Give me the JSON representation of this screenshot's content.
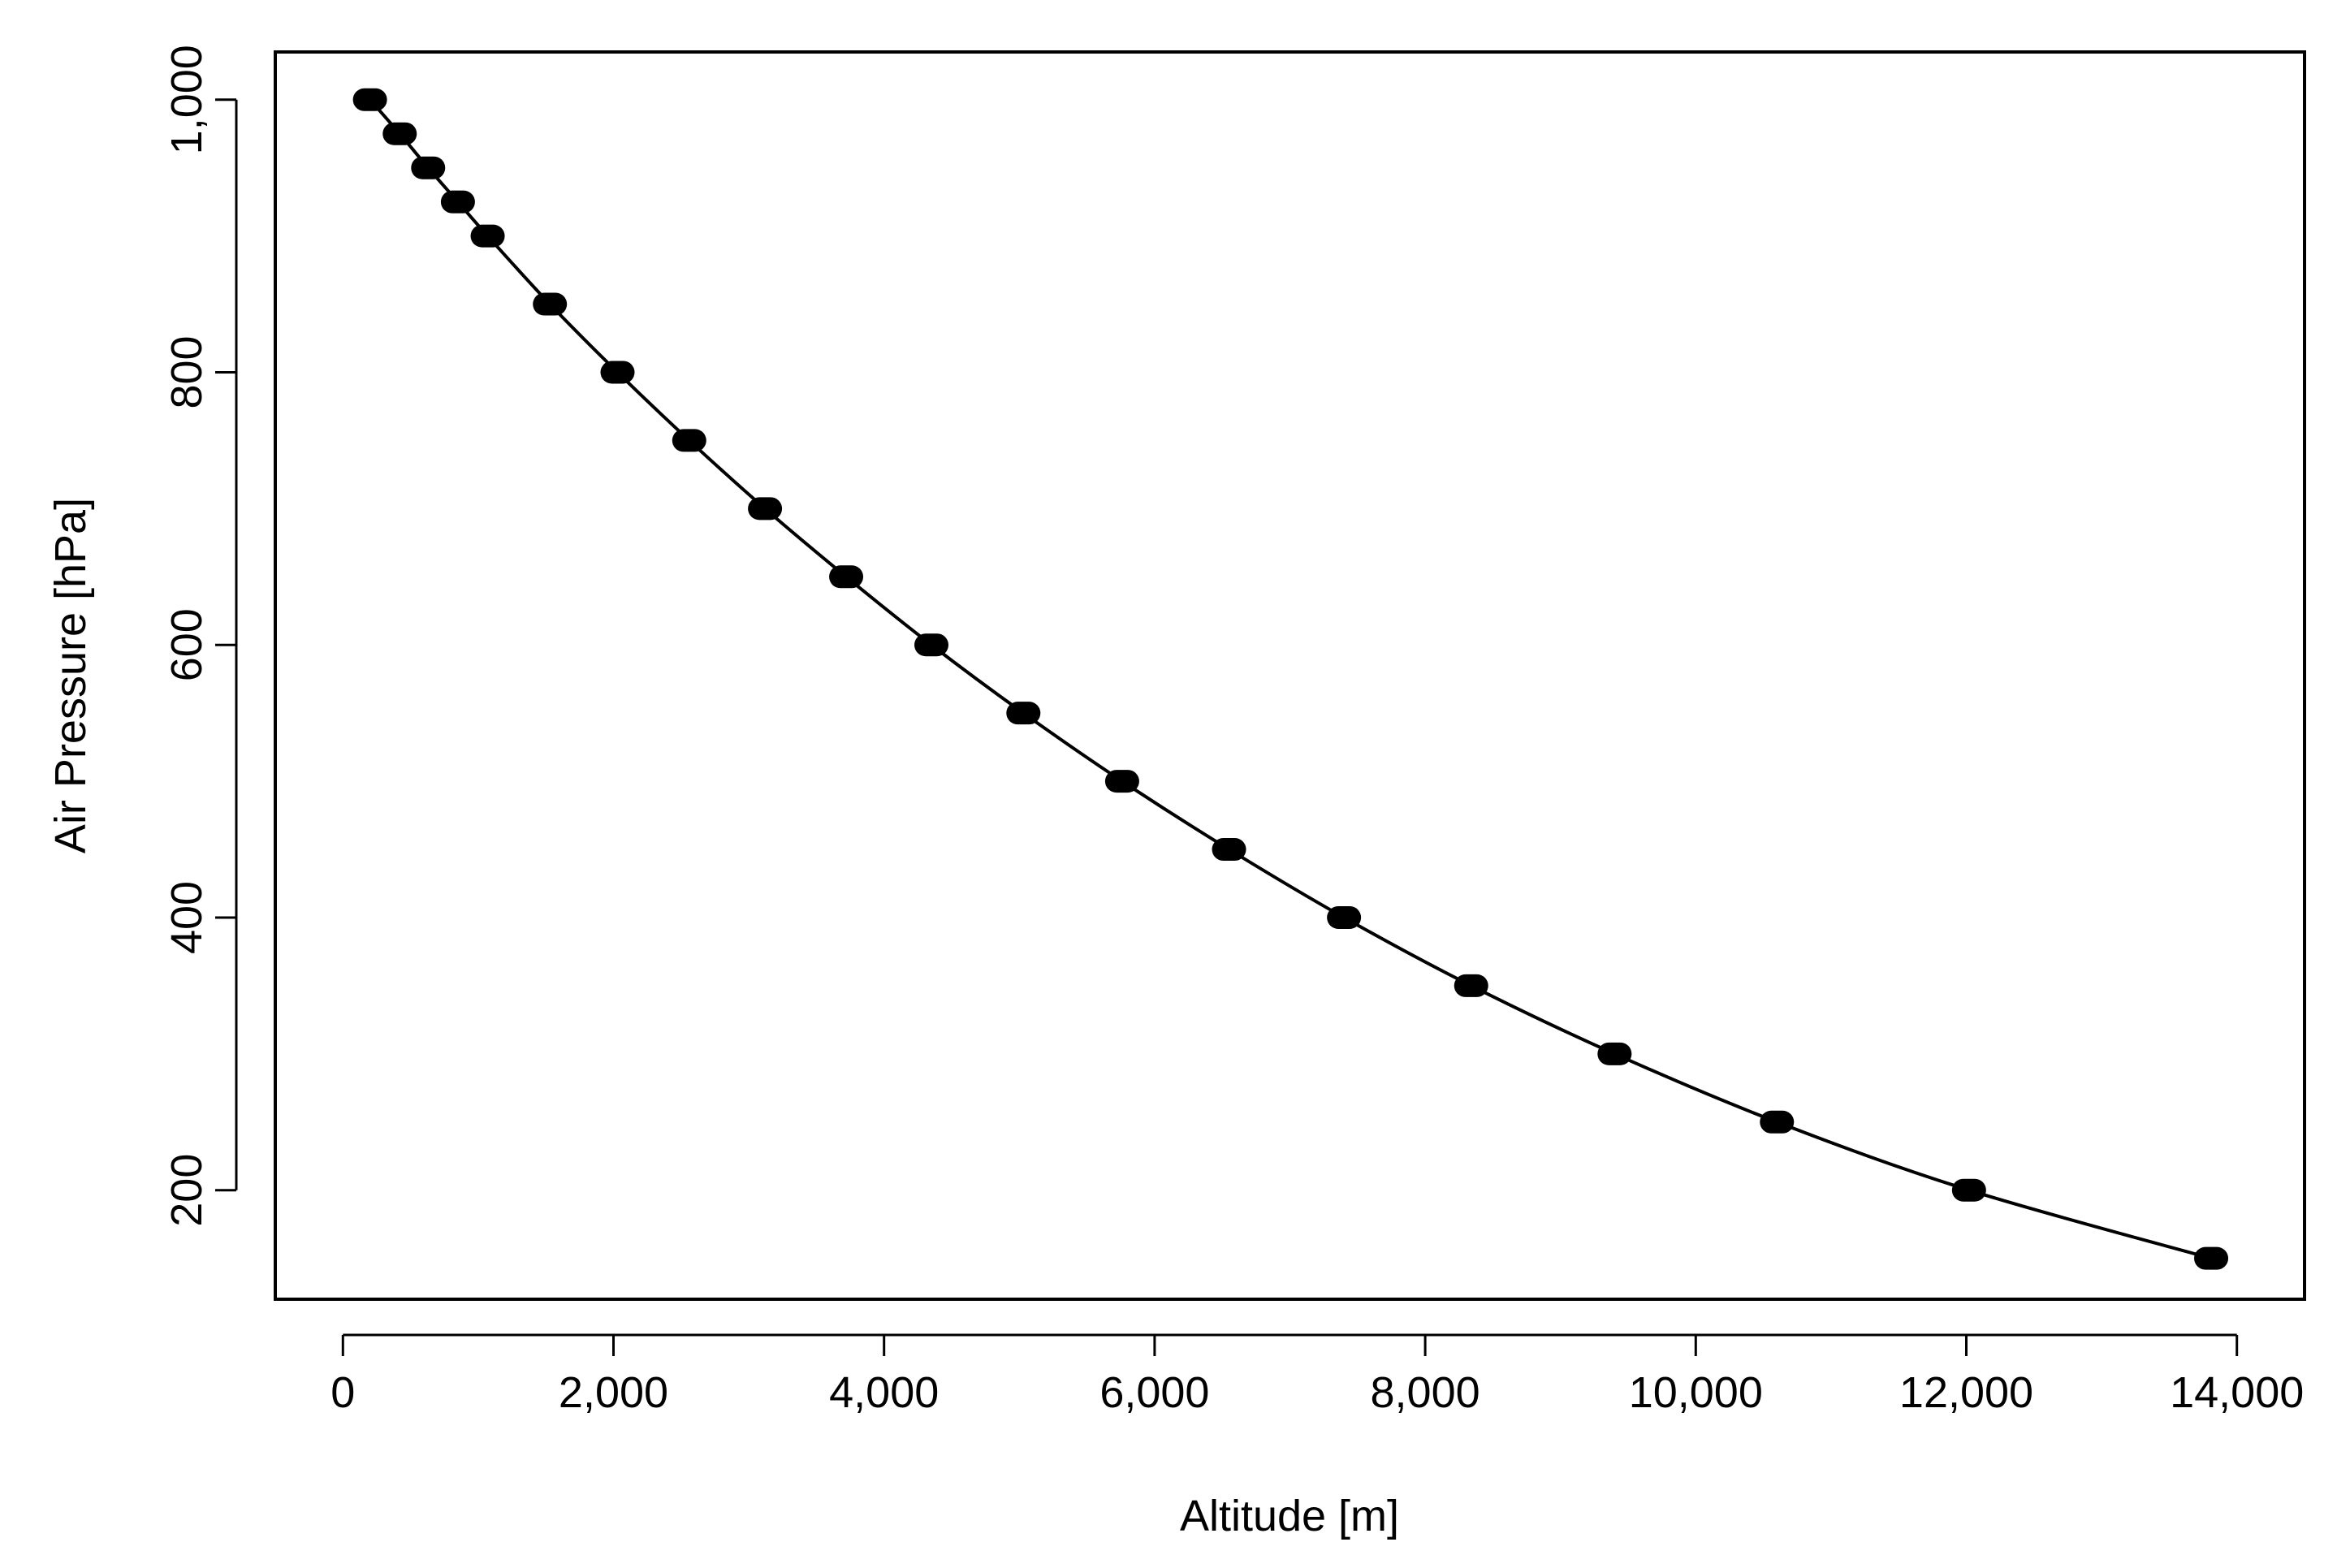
{
  "chart_data": {
    "type": "scatter",
    "title": "",
    "xlabel": "Altitude [m]",
    "ylabel": "Air Pressure [hPa]",
    "xlim": [
      -500,
      14500
    ],
    "ylim": [
      120,
      1035
    ],
    "x_ticks": [
      0,
      2000,
      4000,
      6000,
      8000,
      10000,
      12000,
      14000
    ],
    "x_tick_labels": [
      "0",
      "2,000",
      "4,000",
      "6,000",
      "8,000",
      "10,000",
      "12,000",
      "14,000"
    ],
    "y_ticks": [
      200,
      400,
      600,
      800,
      1000
    ],
    "y_tick_labels": [
      "200",
      "400",
      "600",
      "800",
      "1,000"
    ],
    "grid": false,
    "legend": "none",
    "series": [
      {
        "marker": "filled-circle",
        "color": "#000000",
        "points": [
          {
            "x": 200,
            "y": 1000
          },
          {
            "x": 420,
            "y": 975
          },
          {
            "x": 630,
            "y": 950
          },
          {
            "x": 850,
            "y": 925
          },
          {
            "x": 1070,
            "y": 900
          },
          {
            "x": 1530,
            "y": 850
          },
          {
            "x": 2030,
            "y": 800
          },
          {
            "x": 2560,
            "y": 750
          },
          {
            "x": 3120,
            "y": 700
          },
          {
            "x": 3720,
            "y": 650
          },
          {
            "x": 4350,
            "y": 600
          },
          {
            "x": 5030,
            "y": 550
          },
          {
            "x": 5760,
            "y": 500
          },
          {
            "x": 6550,
            "y": 450
          },
          {
            "x": 7400,
            "y": 400
          },
          {
            "x": 8340,
            "y": 350
          },
          {
            "x": 9400,
            "y": 300
          },
          {
            "x": 10600,
            "y": 250
          },
          {
            "x": 12020,
            "y": 200
          },
          {
            "x": 13810,
            "y": 150
          }
        ]
      },
      {
        "marker": "line",
        "color": "#000000",
        "points": [
          {
            "x": 200,
            "y": 1000
          },
          {
            "x": 420,
            "y": 975
          },
          {
            "x": 630,
            "y": 950
          },
          {
            "x": 850,
            "y": 925
          },
          {
            "x": 1070,
            "y": 900
          },
          {
            "x": 1530,
            "y": 850
          },
          {
            "x": 2030,
            "y": 800
          },
          {
            "x": 2560,
            "y": 750
          },
          {
            "x": 3120,
            "y": 700
          },
          {
            "x": 3720,
            "y": 650
          },
          {
            "x": 4350,
            "y": 600
          },
          {
            "x": 5030,
            "y": 550
          },
          {
            "x": 5760,
            "y": 500
          },
          {
            "x": 6550,
            "y": 450
          },
          {
            "x": 7400,
            "y": 400
          },
          {
            "x": 8340,
            "y": 350
          },
          {
            "x": 9400,
            "y": 300
          },
          {
            "x": 10600,
            "y": 250
          },
          {
            "x": 12020,
            "y": 200
          },
          {
            "x": 13810,
            "y": 150
          }
        ]
      }
    ]
  }
}
